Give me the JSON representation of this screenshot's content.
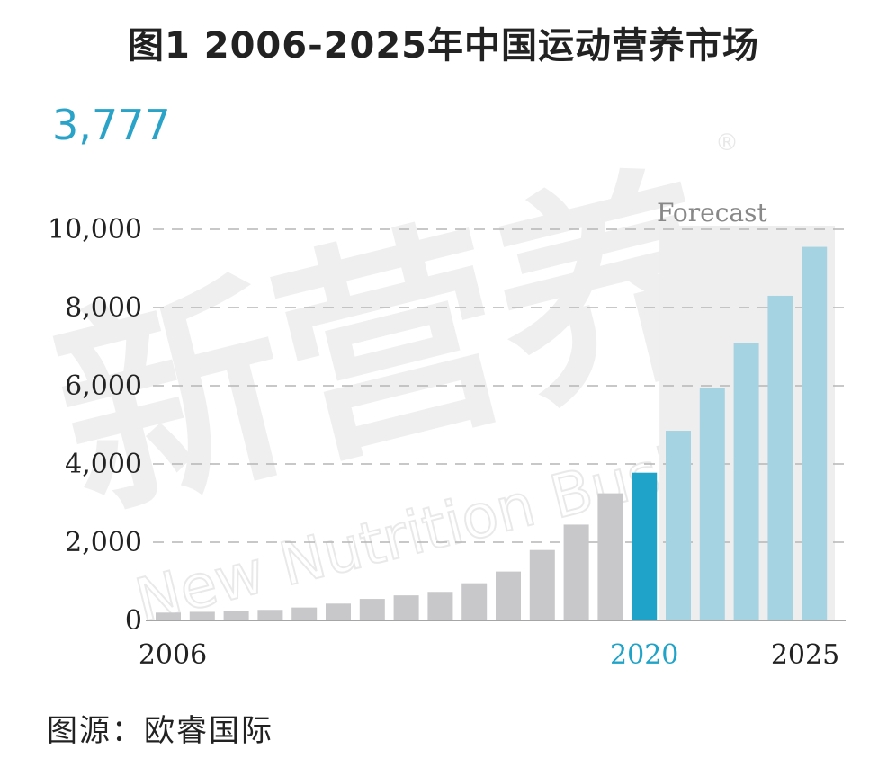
{
  "title": "图1 2006-2025年中国运动营养市场",
  "highlight_value": "3,777",
  "source": "图源：欧睿国际",
  "watermark": {
    "text_cn": "新营养",
    "text_en": "New Nutrition Business",
    "mark": "®"
  },
  "colors": {
    "historical": "#c8c8ca",
    "current": "#1fa3c8",
    "forecast": "#a6d3e1",
    "forecast_bg": "#eeeeee",
    "highlight_text": "#2aa3c9"
  },
  "chart_data": {
    "type": "bar",
    "title": "图1 2006-2025年中国运动营养市场",
    "x": [
      2006,
      2007,
      2008,
      2009,
      2010,
      2011,
      2012,
      2013,
      2014,
      2015,
      2016,
      2017,
      2018,
      2019,
      2020,
      2021,
      2022,
      2023,
      2024,
      2025
    ],
    "values": [
      200,
      220,
      240,
      270,
      330,
      430,
      550,
      640,
      730,
      950,
      1250,
      1800,
      2450,
      3250,
      3777,
      4850,
      5950,
      7100,
      8300,
      9550
    ],
    "bar_kind": [
      "historical",
      "historical",
      "historical",
      "historical",
      "historical",
      "historical",
      "historical",
      "historical",
      "historical",
      "historical",
      "historical",
      "historical",
      "historical",
      "historical",
      "current",
      "forecast",
      "forecast",
      "forecast",
      "forecast",
      "forecast"
    ],
    "tick_labels_x": [
      {
        "index": 0,
        "text": "2006"
      },
      {
        "index": 14,
        "text": "2020"
      },
      {
        "index": 19,
        "text": "2025"
      }
    ],
    "y_ticks": [
      {
        "value": 0,
        "text": "0"
      },
      {
        "value": 2000,
        "text": "2,000"
      },
      {
        "value": 4000,
        "text": "4,000"
      },
      {
        "value": 6000,
        "text": "6,000"
      },
      {
        "value": 8000,
        "text": "8,000"
      },
      {
        "value": 10000,
        "text": "10,000"
      }
    ],
    "ylim": [
      0,
      10000
    ],
    "grid": "dashed horizontal",
    "annotation": "Forecast",
    "forecast_start_index": 15,
    "xlabel": "",
    "ylabel": ""
  }
}
